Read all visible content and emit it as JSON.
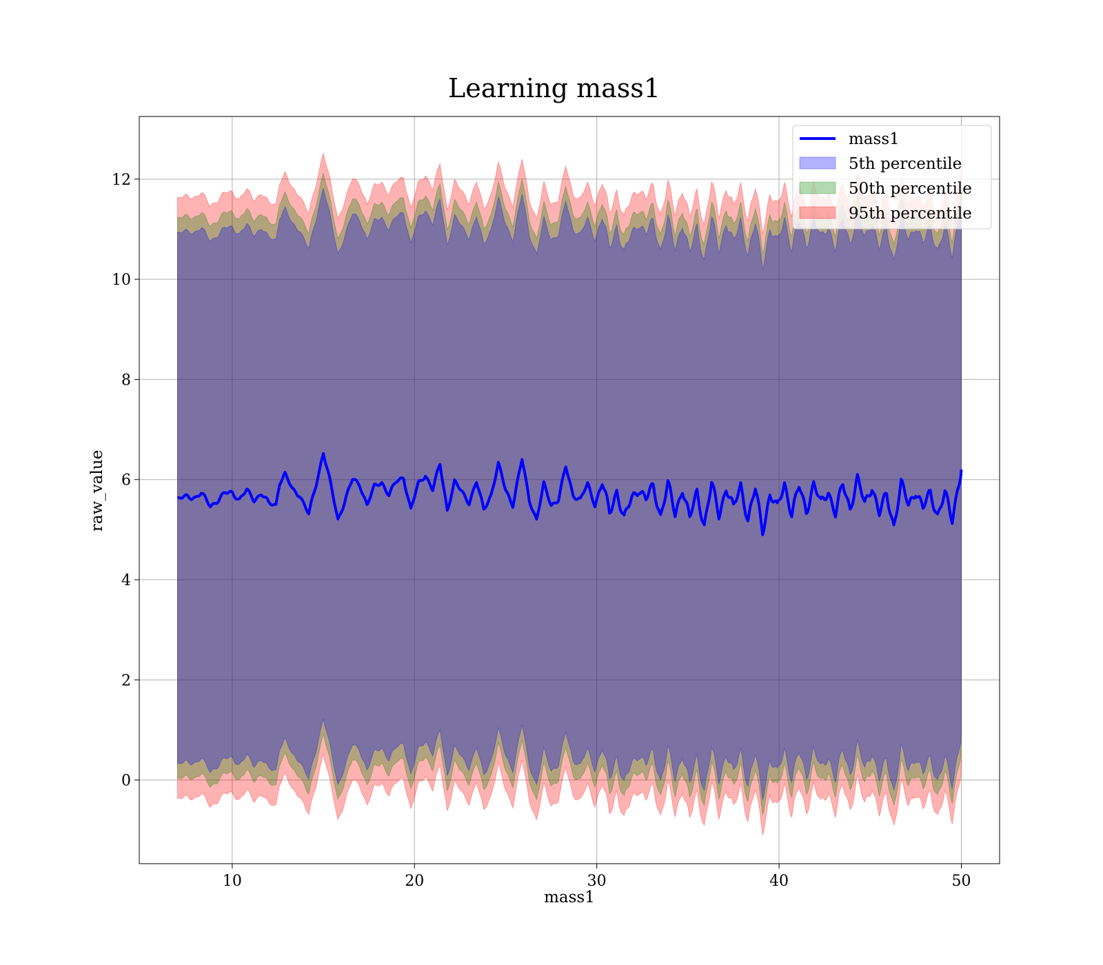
{
  "chart_data": {
    "type": "area",
    "title": "Learning mass1",
    "xlabel": "mass1",
    "ylabel": "raw_value",
    "xlim": [
      4.9,
      52.1
    ],
    "ylim": [
      -1.67,
      13.25
    ],
    "xticks": [
      10,
      20,
      30,
      40,
      50
    ],
    "yticks": [
      0,
      2,
      4,
      6,
      8,
      10,
      12
    ],
    "grid": true,
    "legend_position": "top-right",
    "x_range": [
      7,
      50
    ],
    "series": [
      {
        "name": "mass1",
        "kind": "line",
        "color": "#0000ff",
        "approx_mean": 5.65,
        "points": [
          [
            7.0,
            5.6
          ],
          [
            7.5,
            5.66
          ],
          [
            8.0,
            5.65
          ],
          [
            8.3,
            5.72
          ],
          [
            8.8,
            5.48
          ],
          [
            9.2,
            5.58
          ],
          [
            9.6,
            5.72
          ],
          [
            10.0,
            5.75
          ],
          [
            10.4,
            5.6
          ],
          [
            10.8,
            5.78
          ],
          [
            11.2,
            5.6
          ],
          [
            11.6,
            5.72
          ],
          [
            12.0,
            5.52
          ],
          [
            12.4,
            5.5
          ],
          [
            12.6,
            5.95
          ],
          [
            12.9,
            6.1
          ],
          [
            13.3,
            5.8
          ],
          [
            13.7,
            5.7
          ],
          [
            14.2,
            5.3
          ],
          [
            14.6,
            5.9
          ],
          [
            15.0,
            6.55
          ],
          [
            15.4,
            5.9
          ],
          [
            15.8,
            5.2
          ],
          [
            16.2,
            5.6
          ],
          [
            16.6,
            6.0
          ],
          [
            17.0,
            5.9
          ],
          [
            17.4,
            5.5
          ],
          [
            17.8,
            5.85
          ],
          [
            18.2,
            5.95
          ],
          [
            18.6,
            5.7
          ],
          [
            19.0,
            5.95
          ],
          [
            19.4,
            6.05
          ],
          [
            19.8,
            5.4
          ],
          [
            20.2,
            5.9
          ],
          [
            20.6,
            6.1
          ],
          [
            21.0,
            5.8
          ],
          [
            21.4,
            6.3
          ],
          [
            21.8,
            5.4
          ],
          [
            22.2,
            5.95
          ],
          [
            22.6,
            5.75
          ],
          [
            23.0,
            5.55
          ],
          [
            23.4,
            5.95
          ],
          [
            23.8,
            5.4
          ],
          [
            24.2,
            5.7
          ],
          [
            24.6,
            6.3
          ],
          [
            25.0,
            5.8
          ],
          [
            25.4,
            5.5
          ],
          [
            25.9,
            6.4
          ],
          [
            26.3,
            5.6
          ],
          [
            26.7,
            5.2
          ],
          [
            27.1,
            5.9
          ],
          [
            27.5,
            5.5
          ],
          [
            27.9,
            5.6
          ],
          [
            28.3,
            6.25
          ],
          [
            28.7,
            5.7
          ],
          [
            29.1,
            5.6
          ],
          [
            29.5,
            5.9
          ],
          [
            29.9,
            5.5
          ],
          [
            30.3,
            5.95
          ],
          [
            30.7,
            5.3
          ],
          [
            31.1,
            5.8
          ],
          [
            31.5,
            5.2
          ],
          [
            31.9,
            5.6
          ],
          [
            32.3,
            5.85
          ],
          [
            32.7,
            5.6
          ],
          [
            33.1,
            5.85
          ],
          [
            33.5,
            5.3
          ],
          [
            33.9,
            5.9
          ],
          [
            34.3,
            5.3
          ],
          [
            34.7,
            5.85
          ],
          [
            35.1,
            5.2
          ],
          [
            35.5,
            5.75
          ],
          [
            35.9,
            5.1
          ],
          [
            36.3,
            5.9
          ],
          [
            36.7,
            5.3
          ],
          [
            37.1,
            5.85
          ],
          [
            37.5,
            5.4
          ],
          [
            37.9,
            5.9
          ],
          [
            38.3,
            5.2
          ],
          [
            38.7,
            5.8
          ],
          [
            39.1,
            5.0
          ],
          [
            39.5,
            5.7
          ],
          [
            39.9,
            5.4
          ],
          [
            40.3,
            5.95
          ],
          [
            40.7,
            5.3
          ],
          [
            41.1,
            5.85
          ],
          [
            41.5,
            5.4
          ],
          [
            41.9,
            5.9
          ],
          [
            42.3,
            5.5
          ],
          [
            42.7,
            5.8
          ],
          [
            43.1,
            5.3
          ],
          [
            43.5,
            5.9
          ],
          [
            43.9,
            5.45
          ],
          [
            44.3,
            6.0
          ],
          [
            44.7,
            5.5
          ],
          [
            45.1,
            5.9
          ],
          [
            45.5,
            5.3
          ],
          [
            45.9,
            5.7
          ],
          [
            46.3,
            5.1
          ],
          [
            46.7,
            5.9
          ],
          [
            47.1,
            5.5
          ],
          [
            47.5,
            5.8
          ],
          [
            47.9,
            5.4
          ],
          [
            48.3,
            5.75
          ],
          [
            48.7,
            5.3
          ],
          [
            49.1,
            5.7
          ],
          [
            49.5,
            5.2
          ],
          [
            49.8,
            5.85
          ],
          [
            50.0,
            6.2
          ]
        ]
      },
      {
        "name": "5th percentile",
        "kind": "band",
        "color": "#0000ff",
        "offset_above_mean": 5.3,
        "offset_below_mean": 5.3
      },
      {
        "name": "50th percentile",
        "kind": "band",
        "color": "#008000",
        "offset_above_mean": 5.6,
        "offset_below_mean": 5.6
      },
      {
        "name": "95th percentile",
        "kind": "band",
        "color": "#ff0000",
        "offset_above_mean": 6.0,
        "offset_below_mean": 6.0
      }
    ]
  }
}
